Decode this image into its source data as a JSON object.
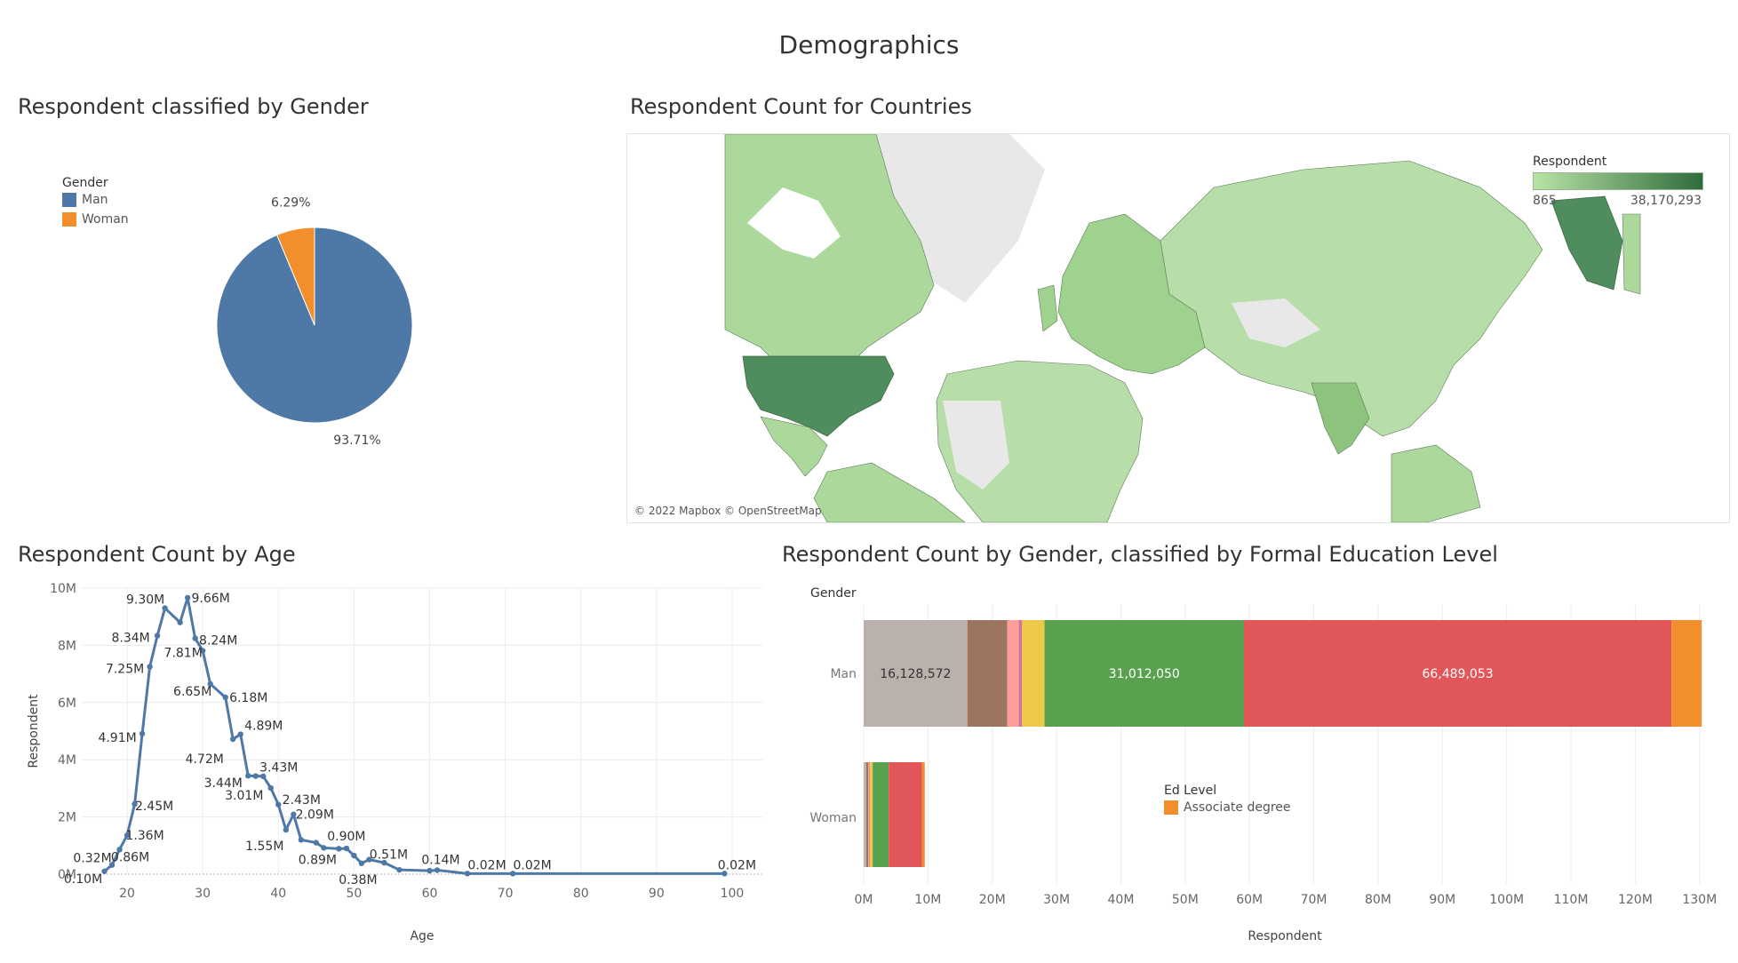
{
  "dashboard": {
    "title": "Demographics"
  },
  "colors": {
    "blue": "#4e79a7",
    "orange": "#f28e2b",
    "grid": "#ececec",
    "axis": "#666666"
  },
  "gender_panel": {
    "title": "Respondent classified by Gender",
    "legend_title": "Gender",
    "legend": [
      {
        "label": "Man",
        "color": "#4e79a7"
      },
      {
        "label": "Woman",
        "color": "#f28e2b"
      }
    ]
  },
  "map_panel": {
    "title": "Respondent Count for Countries",
    "legend_title": "Respondent",
    "legend_min": "865",
    "legend_max": "38,170,293",
    "attribution": "© 2022 Mapbox © OpenStreetMap"
  },
  "age_panel": {
    "title": "Respondent Count by Age"
  },
  "edu_panel": {
    "title": "Respondent Count by Gender, classified by Formal Education Level",
    "row_header": "Gender",
    "legend_title": "Ed Level",
    "legend": [
      {
        "label": "Associate degree",
        "color": "#f28e2b"
      }
    ]
  },
  "chart_data": [
    {
      "type": "pie",
      "labels": [
        "Man",
        "Woman"
      ],
      "values": [
        93.71,
        6.29
      ],
      "value_labels": [
        "93.71%",
        "6.29%"
      ],
      "colors": [
        "#4e79a7",
        "#f28e2b"
      ]
    },
    {
      "type": "line",
      "xlabel": "Age",
      "ylabel": "Respondent",
      "xlim": [
        14,
        104
      ],
      "ylim": [
        0,
        10
      ],
      "x_ticks": [
        20,
        30,
        40,
        50,
        60,
        70,
        80,
        90,
        100
      ],
      "y_ticks": [
        0,
        2,
        4,
        6,
        8,
        10
      ],
      "y_tick_labels": [
        "0M",
        "2M",
        "4M",
        "6M",
        "8M",
        "10M"
      ],
      "x": [
        17,
        18,
        19,
        20,
        21,
        22,
        23,
        24,
        25,
        27,
        28,
        29,
        30,
        31,
        33,
        34,
        35,
        36,
        37,
        38,
        39,
        40,
        41,
        42,
        43,
        45,
        46,
        48,
        49,
        50,
        51,
        52,
        54,
        56,
        60,
        61,
        65,
        71,
        99
      ],
      "y": [
        0.1,
        0.32,
        0.86,
        1.36,
        2.45,
        4.91,
        7.25,
        8.34,
        9.3,
        8.8,
        9.66,
        8.24,
        7.81,
        6.65,
        6.18,
        4.72,
        4.89,
        3.44,
        3.43,
        3.42,
        3.01,
        2.43,
        1.55,
        2.09,
        1.2,
        1.1,
        0.92,
        0.89,
        0.9,
        0.65,
        0.38,
        0.51,
        0.4,
        0.15,
        0.12,
        0.14,
        0.02,
        0.02,
        0.02
      ],
      "point_labels": [
        {
          "x": 17,
          "text": "0.10M"
        },
        {
          "x": 18,
          "text": "0.32M"
        },
        {
          "x": 19,
          "text": "0.86M"
        },
        {
          "x": 20,
          "text": "1.36M"
        },
        {
          "x": 21,
          "text": "2.45M"
        },
        {
          "x": 22,
          "text": "4.91M"
        },
        {
          "x": 23,
          "text": "7.25M"
        },
        {
          "x": 24,
          "text": "8.34M"
        },
        {
          "x": 25,
          "text": "9.30M"
        },
        {
          "x": 28,
          "text": "9.66M"
        },
        {
          "x": 29,
          "text": "8.24M"
        },
        {
          "x": 30,
          "text": "7.81M"
        },
        {
          "x": 31,
          "text": "6.65M"
        },
        {
          "x": 33,
          "text": "6.18M"
        },
        {
          "x": 34,
          "text": "4.72M"
        },
        {
          "x": 35,
          "text": "4.89M"
        },
        {
          "x": 36,
          "text": "3.44M"
        },
        {
          "x": 37,
          "text": "3.43M"
        },
        {
          "x": 39,
          "text": "3.01M"
        },
        {
          "x": 40,
          "text": "2.43M"
        },
        {
          "x": 41,
          "text": "1.55M"
        },
        {
          "x": 42,
          "text": "2.09M"
        },
        {
          "x": 48,
          "text": "0.89M"
        },
        {
          "x": 49,
          "text": "0.90M"
        },
        {
          "x": 51,
          "text": "0.38M"
        },
        {
          "x": 52,
          "text": "0.51M"
        },
        {
          "x": 61,
          "text": "0.14M"
        },
        {
          "x": 65,
          "text": "0.02M"
        },
        {
          "x": 71,
          "text": "0.02M"
        },
        {
          "x": 99,
          "text": "0.02M"
        }
      ]
    },
    {
      "type": "bar",
      "orientation": "horizontal",
      "stacked": true,
      "categories": [
        "Man",
        "Woman"
      ],
      "xlabel": "Respondent",
      "ylabel": "Gender",
      "xlim": [
        0,
        131
      ],
      "x_ticks": [
        0,
        10,
        20,
        30,
        40,
        50,
        60,
        70,
        80,
        90,
        100,
        110,
        120,
        130
      ],
      "x_tick_labels": [
        "0M",
        "10M",
        "20M",
        "30M",
        "40M",
        "50M",
        "60M",
        "70M",
        "80M",
        "90M",
        "100M",
        "110M",
        "120M",
        "130M"
      ],
      "series": [
        {
          "values": [
            16.128572,
            0.4
          ],
          "color": "#bab0ac",
          "label": "16,128,572"
        },
        {
          "values": [
            6.2,
            0.3
          ],
          "color": "#9c755f",
          "label": ""
        },
        {
          "values": [
            1.8,
            0.2
          ],
          "color": "#ff9d9a",
          "label": ""
        },
        {
          "values": [
            0.5,
            0.1
          ],
          "color": "#d37295",
          "label": ""
        },
        {
          "values": [
            3.5,
            0.4
          ],
          "color": "#edc948",
          "label": ""
        },
        {
          "values": [
            31.01205,
            2.5
          ],
          "color": "#59a14f",
          "label": "31,012,050"
        },
        {
          "values": [
            66.489053,
            5.2
          ],
          "color": "#e15759",
          "label": "66,489,053"
        },
        {
          "values": [
            4.7,
            0.4
          ],
          "color": "#f28e2b",
          "label": ""
        }
      ]
    }
  ]
}
